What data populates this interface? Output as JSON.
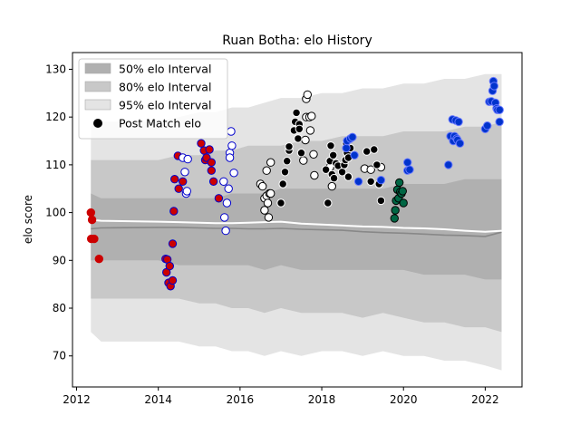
{
  "chart_data": {
    "type": "scatter",
    "title": "Ruan Botha: elo History",
    "xlabel": "",
    "ylabel": "elo score",
    "xlim": [
      2011.9,
      2022.9
    ],
    "ylim": [
      63.5,
      133.5
    ],
    "xticks": [
      2012,
      2014,
      2016,
      2018,
      2020,
      2022
    ],
    "yticks": [
      70,
      80,
      90,
      100,
      110,
      120,
      130
    ],
    "grid": false,
    "legend_position": "top-left",
    "legend": [
      {
        "label": "50% elo Interval",
        "swatch": "band",
        "color": "#b0b0b0"
      },
      {
        "label": "80% elo Interval",
        "swatch": "band",
        "color": "#c8c8c8"
      },
      {
        "label": "95% elo Interval",
        "swatch": "band",
        "color": "#e4e4e4"
      },
      {
        "label": "Post Match elo",
        "swatch": "dot",
        "color": "#000000"
      }
    ],
    "bands": {
      "x": [
        2012.35,
        2012.6,
        2014.0,
        2014.5,
        2015.0,
        2015.4,
        2015.8,
        2016.2,
        2016.6,
        2017.0,
        2017.5,
        2018.0,
        2018.5,
        2019.0,
        2019.5,
        2020.0,
        2020.5,
        2021.0,
        2021.5,
        2022.0,
        2022.4
      ],
      "lo95": [
        75,
        73,
        73,
        73,
        72,
        72,
        71,
        71,
        70,
        71,
        70,
        71,
        71,
        70,
        71,
        70,
        70,
        69,
        69,
        68,
        67
      ],
      "lo80": [
        82,
        82,
        82,
        82,
        81,
        81,
        80,
        80,
        79,
        80,
        79,
        79,
        79,
        78,
        79,
        78,
        77,
        77,
        76,
        76,
        75
      ],
      "lo50": [
        90,
        90,
        90,
        89,
        89,
        89,
        89,
        89,
        88,
        89,
        88,
        88,
        88,
        88,
        88,
        88,
        87,
        87,
        87,
        86,
        86
      ],
      "hi50": [
        104,
        103,
        103,
        103,
        103,
        103,
        104,
        104,
        104,
        105,
        105,
        105,
        105,
        105,
        105,
        106,
        106,
        106,
        107,
        107,
        107
      ],
      "hi80": [
        111,
        111,
        111,
        112,
        112,
        113,
        113,
        114,
        114,
        114,
        115,
        115,
        116,
        116,
        116,
        117,
        117,
        117,
        118,
        118,
        119
      ],
      "hi95": [
        118,
        119,
        119,
        120,
        121,
        121,
        122,
        122,
        123,
        124,
        124,
        125,
        125,
        126,
        126,
        127,
        127,
        128,
        128,
        129,
        129
      ],
      "mean_white": [
        98.5,
        98.3,
        98.1,
        98.0,
        97.9,
        97.8,
        97.8,
        97.9,
        98.0,
        98.1,
        97.7,
        97.5,
        97.3,
        97.1,
        97.0,
        96.8,
        96.7,
        96.5,
        96.2,
        96.0,
        96.2
      ],
      "mean_gray": [
        96.6,
        96.8,
        96.9,
        96.9,
        96.8,
        96.7,
        96.7,
        96.6,
        96.6,
        96.7,
        96.5,
        96.4,
        96.3,
        96.0,
        95.8,
        95.7,
        95.5,
        95.3,
        95.2,
        95.0,
        95.9
      ]
    },
    "series": [
      {
        "fill": "#cc0000",
        "edge": "#cc0000",
        "points": [
          [
            2012.35,
            100
          ],
          [
            2012.38,
            98.5
          ],
          [
            2012.36,
            94.5
          ],
          [
            2012.43,
            94.5
          ],
          [
            2012.55,
            90.3
          ]
        ]
      },
      {
        "fill": "#cc0000",
        "edge": "#0000cc",
        "points": [
          [
            2014.18,
            90.3
          ],
          [
            2014.22,
            90.2
          ],
          [
            2014.2,
            87.5
          ],
          [
            2014.28,
            88.8
          ],
          [
            2014.25,
            85.3
          ],
          [
            2014.3,
            84.6
          ],
          [
            2014.35,
            85.8
          ],
          [
            2014.35,
            93.5
          ],
          [
            2014.38,
            100.3
          ],
          [
            2014.4,
            107
          ],
          [
            2014.48,
            111.9
          ],
          [
            2014.5,
            105
          ],
          [
            2014.6,
            106.5
          ],
          [
            2015.05,
            114.5
          ],
          [
            2015.12,
            113
          ],
          [
            2015.15,
            111
          ],
          [
            2015.18,
            111.5
          ],
          [
            2015.25,
            113.2
          ],
          [
            2015.3,
            110.5
          ],
          [
            2015.3,
            108.8
          ],
          [
            2015.35,
            106.5
          ],
          [
            2015.48,
            103
          ]
        ]
      },
      {
        "fill": "#ffffff",
        "edge": "#0000cc",
        "points": [
          [
            2014.6,
            111.5
          ],
          [
            2014.65,
            108.5
          ],
          [
            2014.68,
            104
          ],
          [
            2014.7,
            104.5
          ],
          [
            2014.72,
            111.2
          ],
          [
            2015.6,
            106.5
          ],
          [
            2015.62,
            99
          ],
          [
            2015.65,
            96.2
          ],
          [
            2015.68,
            102
          ],
          [
            2015.72,
            105
          ],
          [
            2015.75,
            112.5
          ],
          [
            2015.78,
            117
          ],
          [
            2015.8,
            114
          ],
          [
            2015.75,
            111.5
          ],
          [
            2015.85,
            108.3
          ]
        ]
      },
      {
        "fill": "#ffffff",
        "edge": "#000000",
        "points": [
          [
            2016.5,
            106
          ],
          [
            2016.55,
            105.5
          ],
          [
            2016.6,
            103
          ],
          [
            2016.6,
            100.5
          ],
          [
            2016.65,
            103.5
          ],
          [
            2016.68,
            102
          ],
          [
            2016.7,
            99
          ],
          [
            2016.72,
            104
          ],
          [
            2016.75,
            104
          ],
          [
            2016.65,
            108.8
          ],
          [
            2016.75,
            110.5
          ],
          [
            2017.55,
            110.9
          ],
          [
            2017.62,
            123.8
          ],
          [
            2017.65,
            124.7
          ],
          [
            2017.62,
            120
          ],
          [
            2017.7,
            120
          ],
          [
            2017.72,
            117.2
          ],
          [
            2017.6,
            115.2
          ],
          [
            2017.75,
            120.2
          ],
          [
            2017.8,
            112.2
          ],
          [
            2017.82,
            107.8
          ],
          [
            2018.2,
            109.5
          ],
          [
            2018.25,
            105.5
          ],
          [
            2019.05,
            109.2
          ],
          [
            2019.2,
            109
          ],
          [
            2019.45,
            109.5
          ]
        ]
      },
      {
        "fill": "#000000",
        "edge": "#ffffff",
        "points": [
          [
            2017.0,
            102
          ],
          [
            2017.05,
            106
          ],
          [
            2017.1,
            108.5
          ],
          [
            2017.15,
            110.8
          ],
          [
            2017.2,
            113
          ],
          [
            2017.2,
            113.8
          ],
          [
            2017.32,
            117.2
          ],
          [
            2017.35,
            119
          ],
          [
            2017.38,
            120.9
          ],
          [
            2017.42,
            115.5
          ],
          [
            2017.45,
            118.5
          ],
          [
            2017.45,
            117.5
          ],
          [
            2017.5,
            112.5
          ],
          [
            2018.1,
            109
          ],
          [
            2018.15,
            102
          ],
          [
            2018.2,
            110.8
          ],
          [
            2018.22,
            114
          ],
          [
            2018.25,
            108
          ],
          [
            2018.3,
            107.2
          ],
          [
            2018.28,
            112
          ],
          [
            2018.35,
            110.3
          ],
          [
            2018.4,
            109.8
          ],
          [
            2018.5,
            108.5
          ],
          [
            2018.55,
            110
          ],
          [
            2018.58,
            111
          ],
          [
            2018.62,
            112.5
          ],
          [
            2018.65,
            107.5
          ],
          [
            2019.1,
            112.8
          ],
          [
            2019.2,
            106.5
          ],
          [
            2019.28,
            113.2
          ],
          [
            2019.35,
            110
          ],
          [
            2019.4,
            106
          ],
          [
            2019.45,
            102.5
          ],
          [
            2018.7,
            113.5
          ],
          [
            2018.65,
            111.5
          ],
          [
            2018.6,
            114.5
          ]
        ]
      },
      {
        "fill": "#0033cc",
        "edge": "#6677ff",
        "points": [
          [
            2018.6,
            113.5
          ],
          [
            2018.62,
            115
          ],
          [
            2018.7,
            115.5
          ],
          [
            2018.75,
            115.8
          ],
          [
            2018.8,
            112
          ],
          [
            2018.9,
            106.5
          ],
          [
            2019.45,
            106.8
          ],
          [
            2020.1,
            108.8
          ],
          [
            2020.15,
            109
          ],
          [
            2020.1,
            110.5
          ],
          [
            2021.1,
            110
          ],
          [
            2021.15,
            116
          ],
          [
            2021.2,
            119.5
          ],
          [
            2021.22,
            115
          ],
          [
            2021.25,
            116
          ],
          [
            2021.28,
            119.3
          ],
          [
            2021.3,
            115.5
          ],
          [
            2021.32,
            115.2
          ],
          [
            2021.35,
            119
          ],
          [
            2021.38,
            114.5
          ],
          [
            2022.0,
            117.5
          ],
          [
            2022.05,
            118.2
          ],
          [
            2022.1,
            123.2
          ],
          [
            2022.15,
            123.3
          ],
          [
            2022.18,
            125.5
          ],
          [
            2022.2,
            127.5
          ],
          [
            2022.22,
            126.5
          ],
          [
            2022.25,
            123
          ],
          [
            2022.28,
            121.8
          ],
          [
            2022.3,
            121.5
          ],
          [
            2022.35,
            119
          ],
          [
            2022.35,
            121.5
          ]
        ]
      },
      {
        "fill": "#006644",
        "edge": "#000000",
        "points": [
          [
            2019.78,
            98.8
          ],
          [
            2019.8,
            100.5
          ],
          [
            2019.82,
            102.5
          ],
          [
            2019.85,
            104.8
          ],
          [
            2019.88,
            103
          ],
          [
            2019.9,
            106.3
          ],
          [
            2019.92,
            104.3
          ],
          [
            2019.95,
            104
          ],
          [
            2019.98,
            104.5
          ],
          [
            2020.0,
            102
          ]
        ]
      }
    ]
  }
}
